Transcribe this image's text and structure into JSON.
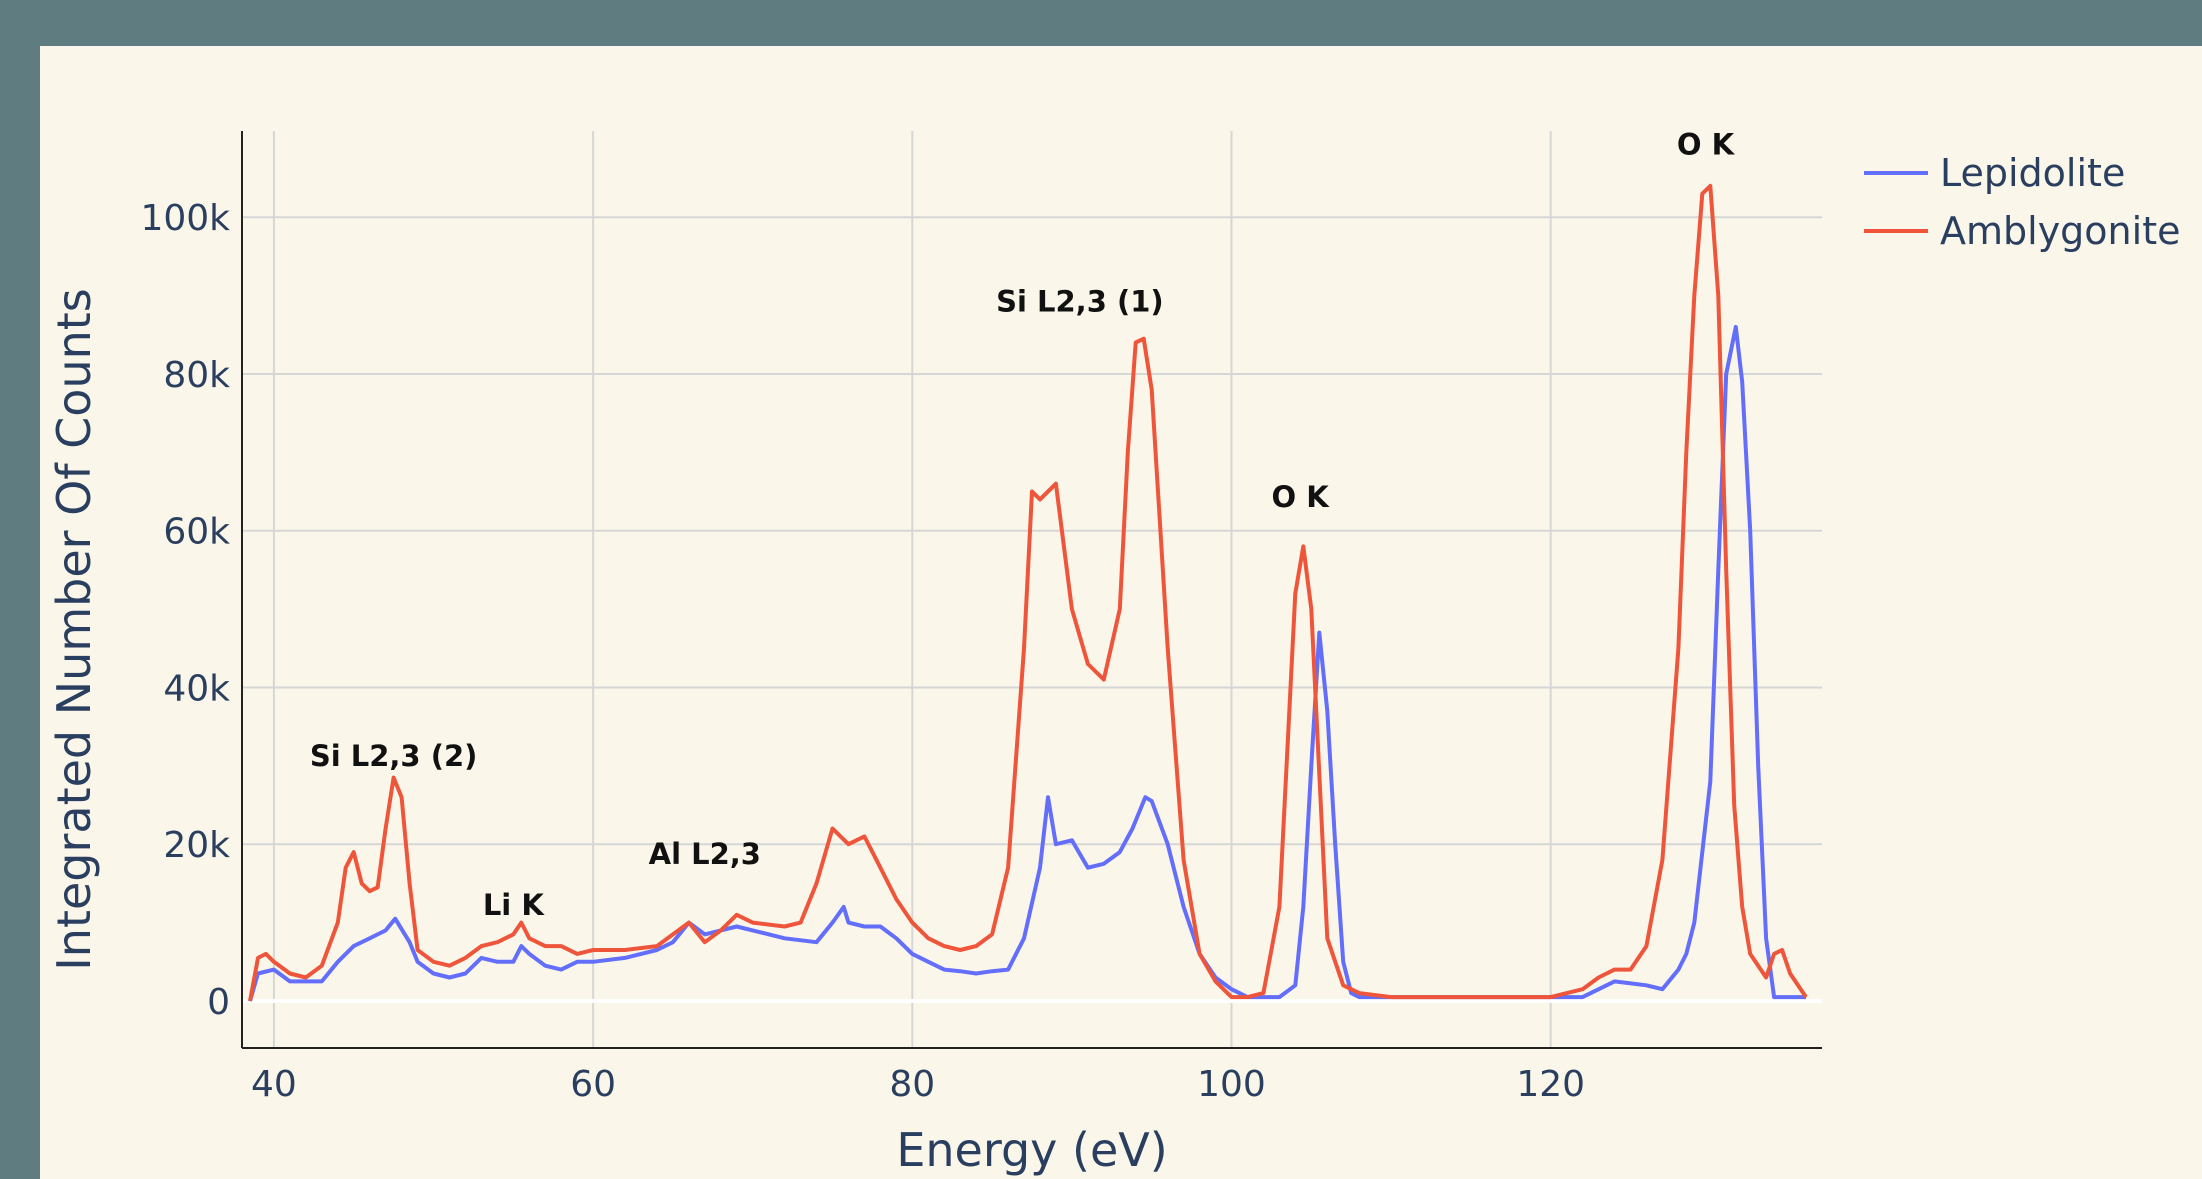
{
  "chart_data": {
    "type": "line",
    "xlabel": "Energy (eV)",
    "ylabel": "Integrated Number Of Counts",
    "xlim": [
      38,
      137
    ],
    "ylim": [
      -6000,
      111000
    ],
    "x_ticks": [
      40,
      60,
      80,
      100,
      120
    ],
    "y_ticks": [
      0,
      20000,
      40000,
      60000,
      80000,
      100000
    ],
    "x_tick_labels": [
      "40",
      "60",
      "80",
      "100",
      "120"
    ],
    "y_tick_labels": [
      "0",
      "20k",
      "40k",
      "60k",
      "80k",
      "100k"
    ],
    "grid": true,
    "legend_position": "top-right",
    "series": [
      {
        "name": "Lepidolite",
        "color": "#636efa",
        "points": [
          [
            38.5,
            0
          ],
          [
            39,
            3500
          ],
          [
            40,
            4000
          ],
          [
            41,
            2500
          ],
          [
            42,
            2500
          ],
          [
            43,
            2500
          ],
          [
            44,
            5000
          ],
          [
            45,
            7000
          ],
          [
            46,
            8000
          ],
          [
            47,
            9000
          ],
          [
            47.6,
            10500
          ],
          [
            48.5,
            7500
          ],
          [
            49,
            5000
          ],
          [
            50,
            3500
          ],
          [
            51,
            3000
          ],
          [
            52,
            3500
          ],
          [
            53,
            5500
          ],
          [
            54,
            5000
          ],
          [
            55,
            5000
          ],
          [
            55.5,
            7000
          ],
          [
            56,
            6000
          ],
          [
            57,
            4500
          ],
          [
            58,
            4000
          ],
          [
            59,
            5000
          ],
          [
            60,
            5000
          ],
          [
            62,
            5500
          ],
          [
            64,
            6500
          ],
          [
            65,
            7500
          ],
          [
            66,
            10000
          ],
          [
            67,
            8500
          ],
          [
            68,
            9000
          ],
          [
            69,
            9500
          ],
          [
            70,
            9000
          ],
          [
            72,
            8000
          ],
          [
            74,
            7500
          ],
          [
            75,
            10000
          ],
          [
            75.7,
            12000
          ],
          [
            76,
            10000
          ],
          [
            77,
            9500
          ],
          [
            78,
            9500
          ],
          [
            79,
            8000
          ],
          [
            80,
            6000
          ],
          [
            81,
            5000
          ],
          [
            82,
            4000
          ],
          [
            83,
            3800
          ],
          [
            84,
            3500
          ],
          [
            85,
            3800
          ],
          [
            86,
            4000
          ],
          [
            87,
            8000
          ],
          [
            88,
            17000
          ],
          [
            88.5,
            26000
          ],
          [
            89,
            20000
          ],
          [
            90,
            20500
          ],
          [
            91,
            17000
          ],
          [
            92,
            17500
          ],
          [
            93,
            19000
          ],
          [
            93.8,
            22000
          ],
          [
            94.2,
            24000
          ],
          [
            94.6,
            26000
          ],
          [
            95,
            25500
          ],
          [
            96,
            20000
          ],
          [
            97,
            12000
          ],
          [
            98,
            6000
          ],
          [
            99,
            3000
          ],
          [
            100,
            1500
          ],
          [
            101,
            500
          ],
          [
            102,
            500
          ],
          [
            103,
            500
          ],
          [
            104,
            2000
          ],
          [
            104.5,
            12000
          ],
          [
            105,
            30000
          ],
          [
            105.5,
            47000
          ],
          [
            106,
            37000
          ],
          [
            106.5,
            20000
          ],
          [
            107,
            5000
          ],
          [
            107.5,
            1000
          ],
          [
            108,
            500
          ],
          [
            110,
            500
          ],
          [
            112,
            500
          ],
          [
            114,
            500
          ],
          [
            116,
            500
          ],
          [
            118,
            500
          ],
          [
            120,
            500
          ],
          [
            122,
            500
          ],
          [
            124,
            2500
          ],
          [
            126,
            2000
          ],
          [
            127,
            1500
          ],
          [
            128,
            4000
          ],
          [
            128.5,
            6000
          ],
          [
            129,
            10000
          ],
          [
            130,
            28000
          ],
          [
            130.5,
            55000
          ],
          [
            131,
            80000
          ],
          [
            131.6,
            86000
          ],
          [
            132,
            79000
          ],
          [
            132.5,
            60000
          ],
          [
            133,
            30000
          ],
          [
            133.5,
            8000
          ],
          [
            134,
            500
          ],
          [
            135,
            500
          ],
          [
            136,
            500
          ]
        ]
      },
      {
        "name": "Amblygonite",
        "color": "#ef553b",
        "points": [
          [
            38.5,
            0
          ],
          [
            39,
            5500
          ],
          [
            39.5,
            6000
          ],
          [
            40,
            5000
          ],
          [
            41,
            3500
          ],
          [
            42,
            3000
          ],
          [
            43,
            4500
          ],
          [
            44,
            10000
          ],
          [
            44.5,
            17000
          ],
          [
            45,
            19000
          ],
          [
            45.5,
            15000
          ],
          [
            46,
            14000
          ],
          [
            46.5,
            14500
          ],
          [
            47,
            22000
          ],
          [
            47.5,
            28500
          ],
          [
            48,
            26000
          ],
          [
            48.5,
            15000
          ],
          [
            49,
            6500
          ],
          [
            50,
            5000
          ],
          [
            51,
            4500
          ],
          [
            52,
            5500
          ],
          [
            53,
            7000
          ],
          [
            54,
            7500
          ],
          [
            55,
            8500
          ],
          [
            55.5,
            10000
          ],
          [
            56,
            8000
          ],
          [
            57,
            7000
          ],
          [
            58,
            7000
          ],
          [
            59,
            6000
          ],
          [
            60,
            6500
          ],
          [
            62,
            6500
          ],
          [
            64,
            7000
          ],
          [
            65,
            8500
          ],
          [
            66,
            10000
          ],
          [
            67,
            7500
          ],
          [
            68,
            9000
          ],
          [
            69,
            11000
          ],
          [
            70,
            10000
          ],
          [
            72,
            9500
          ],
          [
            73,
            10000
          ],
          [
            74,
            15000
          ],
          [
            75,
            22000
          ],
          [
            75.5,
            21000
          ],
          [
            76,
            20000
          ],
          [
            77,
            21000
          ],
          [
            78,
            17000
          ],
          [
            79,
            13000
          ],
          [
            80,
            10000
          ],
          [
            81,
            8000
          ],
          [
            82,
            7000
          ],
          [
            83,
            6500
          ],
          [
            84,
            7000
          ],
          [
            85,
            8500
          ],
          [
            86,
            17000
          ],
          [
            87,
            45000
          ],
          [
            87.5,
            65000
          ],
          [
            88,
            64000
          ],
          [
            89,
            66000
          ],
          [
            90,
            50000
          ],
          [
            91,
            43000
          ],
          [
            92,
            41000
          ],
          [
            93,
            50000
          ],
          [
            93.5,
            70000
          ],
          [
            94,
            84000
          ],
          [
            94.5,
            84500
          ],
          [
            95,
            78000
          ],
          [
            96,
            45000
          ],
          [
            97,
            18000
          ],
          [
            98,
            6000
          ],
          [
            99,
            2500
          ],
          [
            100,
            500
          ],
          [
            101,
            500
          ],
          [
            102,
            1000
          ],
          [
            103,
            12000
          ],
          [
            104,
            52000
          ],
          [
            104.5,
            58000
          ],
          [
            105,
            50000
          ],
          [
            106,
            8000
          ],
          [
            107,
            2000
          ],
          [
            108,
            1000
          ],
          [
            110,
            500
          ],
          [
            112,
            500
          ],
          [
            114,
            500
          ],
          [
            116,
            500
          ],
          [
            118,
            500
          ],
          [
            120,
            500
          ],
          [
            122,
            1500
          ],
          [
            123,
            3000
          ],
          [
            124,
            4000
          ],
          [
            125,
            4000
          ],
          [
            126,
            7000
          ],
          [
            127,
            18000
          ],
          [
            128,
            45000
          ],
          [
            128.5,
            70000
          ],
          [
            129,
            90000
          ],
          [
            129.5,
            103000
          ],
          [
            130,
            104000
          ],
          [
            130.5,
            90000
          ],
          [
            131,
            55000
          ],
          [
            131.5,
            25000
          ],
          [
            132,
            12000
          ],
          [
            132.5,
            6000
          ],
          [
            133.5,
            3000
          ],
          [
            134,
            6000
          ],
          [
            134.5,
            6500
          ],
          [
            135,
            3500
          ],
          [
            136,
            500
          ]
        ]
      }
    ],
    "annotations": [
      {
        "text": "Si L2,3 (2)",
        "x": 47.5,
        "y": 30000
      },
      {
        "text": "Li K",
        "x": 55,
        "y": 11000
      },
      {
        "text": "Al L2,3",
        "x": 67,
        "y": 17500
      },
      {
        "text": "Si L2,3 (1)",
        "x": 90.5,
        "y": 88000
      },
      {
        "text": "O K",
        "x": 104.3,
        "y": 63000
      },
      {
        "text": "O K",
        "x": 129.7,
        "y": 108000
      }
    ]
  }
}
